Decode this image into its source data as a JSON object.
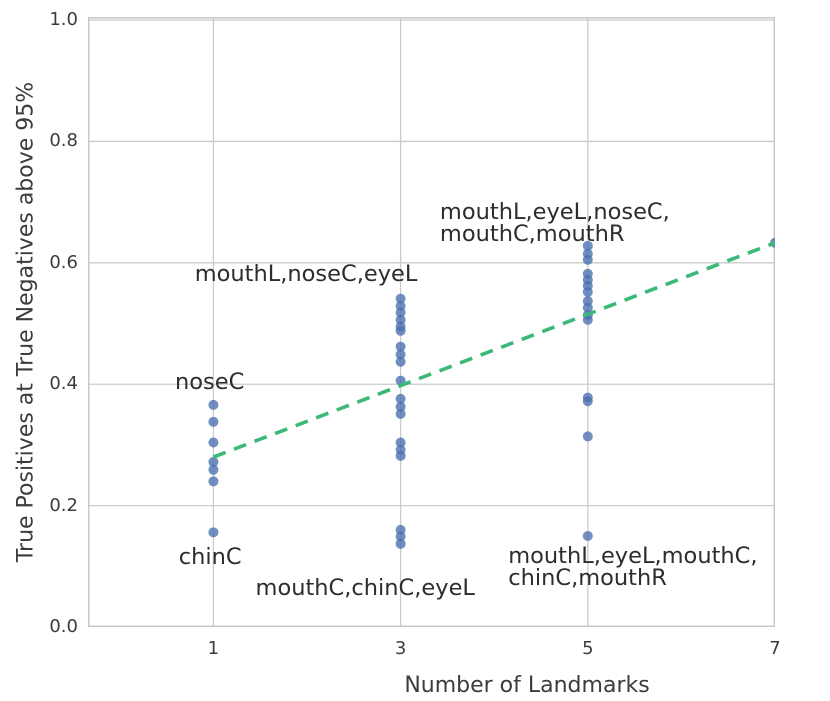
{
  "figure": {
    "xlabel": "Number of Landmarks",
    "ylabel": "True Positives at True Negatives above 95%"
  },
  "chart_data": {
    "type": "scatter",
    "title": "",
    "xlabel": "Number of Landmarks",
    "ylabel": "True Positives at True Negatives above 95%",
    "xlim": [
      -0.34,
      7
    ],
    "ylim": [
      0,
      1.005
    ],
    "x_ticks": [
      1,
      3,
      5,
      7
    ],
    "y_ticks": [
      0.0,
      0.2,
      0.4,
      0.6,
      0.8,
      1.0
    ],
    "grid": true,
    "legend": "none",
    "colors": {
      "points": "#4c72b0",
      "trend": "#3cb978",
      "grid": "#cbcbcb",
      "spine": "#c8c8c8",
      "text": "#3c3c3c"
    },
    "series": [
      {
        "name": "landmark-combination-results",
        "type": "scatter",
        "marker": "circle",
        "points": [
          [
            1,
            0.366
          ],
          [
            1,
            0.338
          ],
          [
            1,
            0.304
          ],
          [
            1,
            0.272
          ],
          [
            1,
            0.259
          ],
          [
            1,
            0.24
          ],
          [
            1,
            0.156
          ],
          [
            3,
            0.541
          ],
          [
            3,
            0.529
          ],
          [
            3,
            0.518
          ],
          [
            3,
            0.506
          ],
          [
            3,
            0.495
          ],
          [
            3,
            0.488
          ],
          [
            3,
            0.462
          ],
          [
            3,
            0.449
          ],
          [
            3,
            0.437
          ],
          [
            3,
            0.406
          ],
          [
            3,
            0.376
          ],
          [
            3,
            0.363
          ],
          [
            3,
            0.351
          ],
          [
            3,
            0.304
          ],
          [
            3,
            0.292
          ],
          [
            3,
            0.282
          ],
          [
            3,
            0.16
          ],
          [
            3,
            0.149
          ],
          [
            3,
            0.137
          ],
          [
            5,
            0.628
          ],
          [
            5,
            0.615
          ],
          [
            5,
            0.605
          ],
          [
            5,
            0.582
          ],
          [
            5,
            0.572
          ],
          [
            5,
            0.562
          ],
          [
            5,
            0.552
          ],
          [
            5,
            0.537
          ],
          [
            5,
            0.526
          ],
          [
            5,
            0.514
          ],
          [
            5,
            0.506
          ],
          [
            5,
            0.378
          ],
          [
            5,
            0.372
          ],
          [
            5,
            0.314
          ],
          [
            5,
            0.15
          ],
          [
            7,
            0.633
          ]
        ]
      },
      {
        "name": "trend-line",
        "type": "line",
        "style": "dashed",
        "points": [
          [
            1,
            0.28
          ],
          [
            7,
            0.633
          ]
        ]
      }
    ],
    "annotations": [
      {
        "text": "mouthL,eyeL,noseC,\nmouthC,mouthR",
        "x": 3.42,
        "y": 0.702
      },
      {
        "text": "mouthL,noseC,eyeL",
        "x": 0.8,
        "y": 0.6
      },
      {
        "text": "noseC",
        "x": 0.59,
        "y": 0.421
      },
      {
        "text": "chinC",
        "x": 0.63,
        "y": 0.133
      },
      {
        "text": "mouthC,chinC,eyeL",
        "x": 1.45,
        "y": 0.082
      },
      {
        "text": "mouthL,eyeL,mouthC,\nchinC,mouthR",
        "x": 4.15,
        "y": 0.135
      }
    ]
  }
}
